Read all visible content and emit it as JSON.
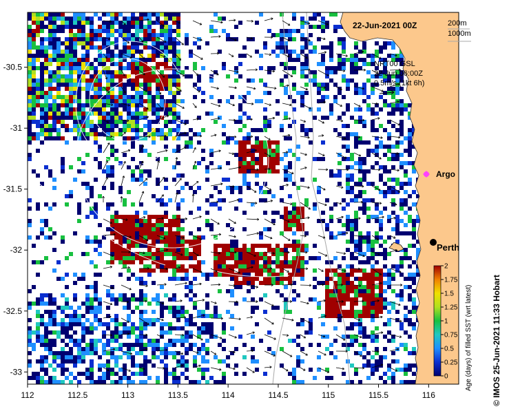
{
  "title": "22-Jun-2021 00Z",
  "depth_legend": [
    "200m",
    "1000m"
  ],
  "current_legend": {
    "model": "NRT00 GSL",
    "time": "22-Jun 06:00Z",
    "scale": "0.5m/s (1kt 6h)"
  },
  "places": {
    "argo": "Argo",
    "perth": "Perth"
  },
  "credit": "© IMOS 25-Jun-2021 11:33 Hobart",
  "colorbar": {
    "title": "Age (days) of filled SST (wrt latest)",
    "ticks": [
      "0",
      "0.25",
      "0.5",
      "0.75",
      "1",
      "1.25",
      "1.5",
      "1.75",
      "2"
    ],
    "colors": [
      "#000070",
      "#0a2fd0",
      "#1f8fff",
      "#20c8c0",
      "#18c040",
      "#b0e020",
      "#f0e000",
      "#f08000",
      "#a00000"
    ]
  },
  "axes": {
    "lon_ticks": [
      "112",
      "112.5",
      "113",
      "113.5",
      "114",
      "114.5",
      "115",
      "115.5",
      "116"
    ],
    "lat_ticks": [
      "-30.5",
      "-31",
      "-31.5",
      "-32",
      "-32.5",
      "-33"
    ],
    "lon_range": [
      112,
      116.3
    ],
    "lat_range": [
      -33.1,
      -30.05
    ]
  },
  "colors": {
    "land": "#fcc88c",
    "ocean": "#ffffff"
  }
}
